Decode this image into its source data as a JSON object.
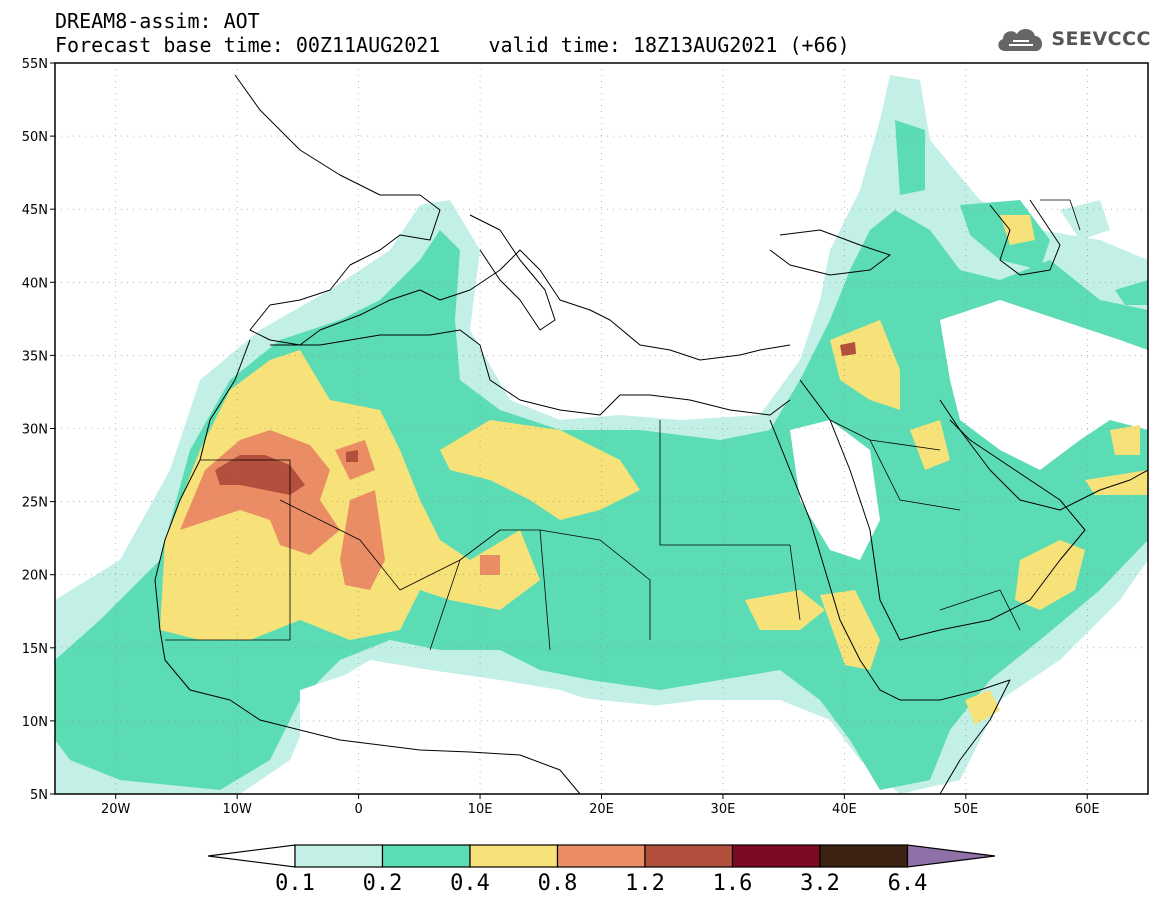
{
  "header": {
    "title_line1": "DREAM8-assim: AOT",
    "base_time": "Forecast base time: 00Z11AUG2021",
    "valid_time": "valid time: 18Z13AUG2021 (+66)"
  },
  "logo": {
    "text": "SEEVCCC",
    "icon": "cloud-icon"
  },
  "map": {
    "lon_range": [
      -25,
      65
    ],
    "lat_range": [
      5,
      55
    ],
    "lat_ticks": [
      {
        "value": 55,
        "label": "55N"
      },
      {
        "value": 50,
        "label": "50N"
      },
      {
        "value": 45,
        "label": "45N"
      },
      {
        "value": 40,
        "label": "40N"
      },
      {
        "value": 35,
        "label": "35N"
      },
      {
        "value": 30,
        "label": "30N"
      },
      {
        "value": 25,
        "label": "25N"
      },
      {
        "value": 20,
        "label": "20N"
      },
      {
        "value": 15,
        "label": "15N"
      },
      {
        "value": 10,
        "label": "10N"
      },
      {
        "value": 5,
        "label": "5N"
      }
    ],
    "lon_ticks": [
      {
        "value": -20,
        "label": "20W"
      },
      {
        "value": -10,
        "label": "10W"
      },
      {
        "value": 0,
        "label": "0"
      },
      {
        "value": 10,
        "label": "10E"
      },
      {
        "value": 20,
        "label": "20E"
      },
      {
        "value": 30,
        "label": "30E"
      },
      {
        "value": 40,
        "label": "40E"
      },
      {
        "value": 50,
        "label": "50E"
      },
      {
        "value": 60,
        "label": "60E"
      }
    ],
    "grid": "dotted"
  },
  "colorbar": {
    "levels": [
      "0.1",
      "0.2",
      "0.4",
      "0.8",
      "1.2",
      "1.6",
      "3.2",
      "6.4"
    ],
    "colors": [
      "#ffffff",
      "#c2f0e6",
      "#5cdcb4",
      "#f7e27a",
      "#ea8d64",
      "#b24f3d",
      "#7d0a24",
      "#3d2313",
      "#9070a8"
    ]
  }
}
